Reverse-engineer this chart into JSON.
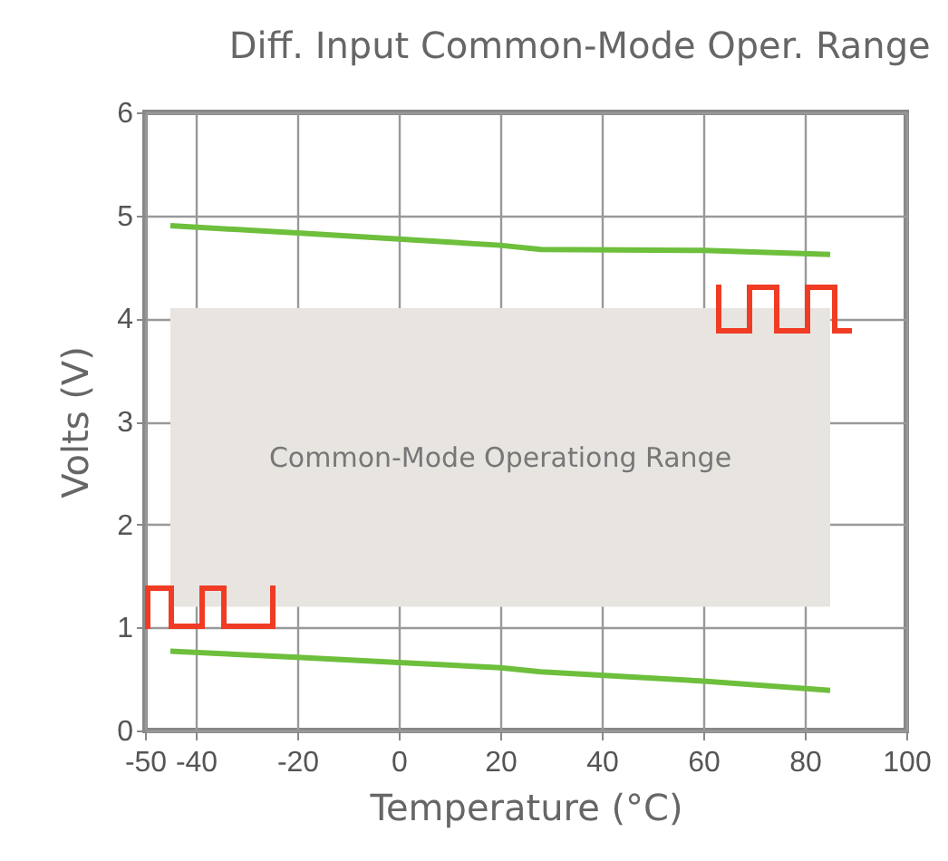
{
  "chart_data": {
    "type": "line",
    "title": "Diff. Input Common-Mode Oper. Range",
    "xlabel": "Temperature (°C)",
    "ylabel": "Volts (V)",
    "series": [
      {
        "color": "#6dbf3c",
        "x": [
          -45,
          -20,
          0,
          20,
          28,
          60,
          85
        ],
        "values": [
          4.9,
          4.83,
          4.77,
          4.71,
          4.67,
          4.66,
          4.62
        ]
      },
      {
        "color": "#6dbf3c",
        "x": [
          -45,
          -20,
          0,
          20,
          28,
          60,
          85
        ],
        "values": [
          0.77,
          0.71,
          0.66,
          0.61,
          0.57,
          0.48,
          0.39
        ]
      }
    ],
    "bands": [
      {
        "axis": "y",
        "from": 1.2,
        "to": 4.1,
        "label": "Common-Mode Operationg Range",
        "color": "#e8e5e1"
      }
    ],
    "xlim": [
      -50,
      100
    ],
    "xticks": [
      -50,
      -40,
      -20,
      0,
      20,
      40,
      60,
      80,
      100
    ],
    "ylim": [
      0,
      6
    ],
    "yticks": [
      0,
      1,
      2,
      3,
      4,
      5,
      6
    ],
    "grid": true,
    "legend": false
  }
}
